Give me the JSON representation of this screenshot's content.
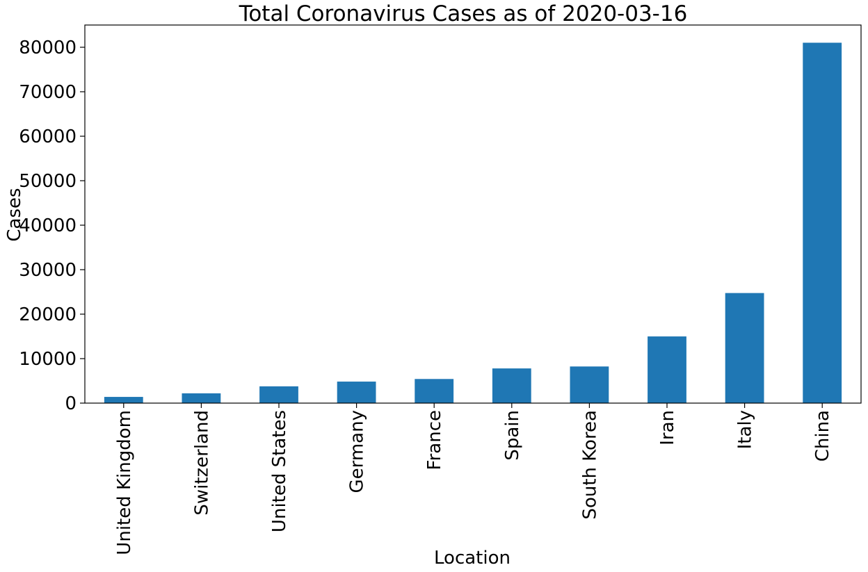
{
  "chart_data": {
    "type": "bar",
    "title": "Total Coronavirus Cases as of 2020-03-16",
    "xlabel": "Location",
    "ylabel": "Cases",
    "categories": [
      "United Kingdom",
      "Switzerland",
      "United States",
      "Germany",
      "France",
      "Spain",
      "South Korea",
      "Iran",
      "Italy",
      "China"
    ],
    "values": [
      1395,
      2200,
      3774,
      4838,
      5423,
      7798,
      8236,
      14991,
      24747,
      81020
    ],
    "ylim": [
      0,
      85000
    ],
    "yticks": [
      0,
      10000,
      20000,
      30000,
      40000,
      50000,
      60000,
      70000,
      80000
    ],
    "grid": false,
    "legend": false,
    "bar_color": "#1f77b4"
  }
}
